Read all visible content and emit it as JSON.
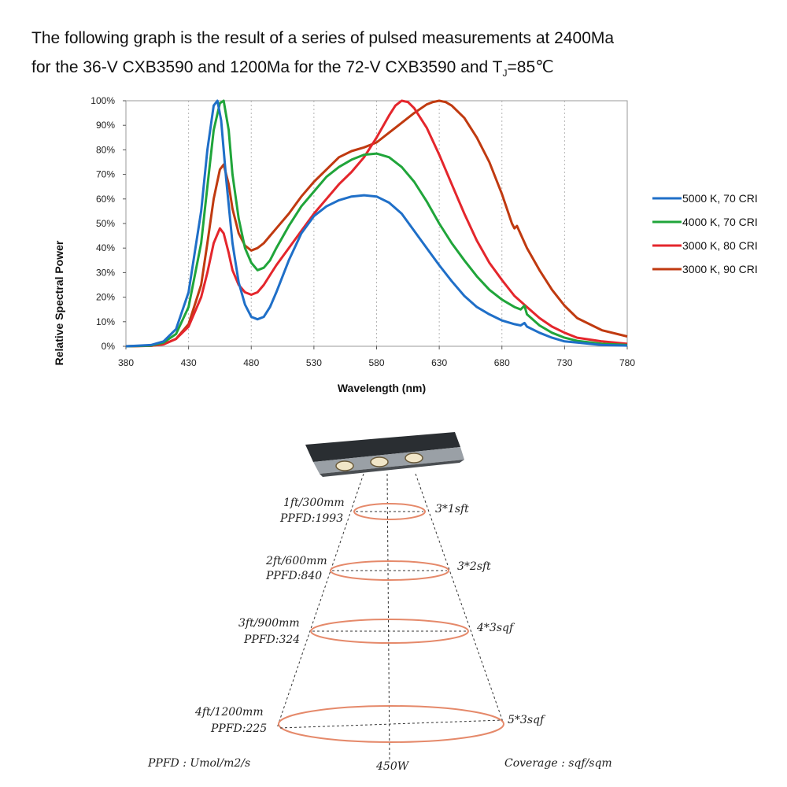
{
  "heading": {
    "line1": "The following graph is the result of a series of pulsed measurements at 2400Ma",
    "line2_prefix": "for the 36-V CXB3590 and 1200Ma for the 72-V CXB3590 and T",
    "line2_sub": "J",
    "line2_suffix": "=85℃"
  },
  "chart_data": {
    "type": "line",
    "xlabel": "Wavelength (nm)",
    "ylabel": "Relative Spectral Power",
    "xlim": [
      380,
      780
    ],
    "ylim": [
      0,
      100
    ],
    "x_ticks": [
      380,
      430,
      480,
      530,
      580,
      630,
      680,
      730,
      780
    ],
    "y_ticks": [
      "0%",
      "10%",
      "20%",
      "30%",
      "40%",
      "50%",
      "60%",
      "70%",
      "80%",
      "90%",
      "100%"
    ],
    "grid": "vertical dashed",
    "legend_position": "right",
    "series": [
      {
        "name": "5000 K, 70 CRI",
        "color": "#1f6fc8",
        "x": [
          380,
          400,
          410,
          420,
          430,
          440,
          445,
          450,
          453,
          456,
          460,
          465,
          470,
          475,
          480,
          485,
          490,
          495,
          500,
          510,
          520,
          530,
          540,
          550,
          560,
          570,
          580,
          590,
          600,
          610,
          620,
          630,
          640,
          650,
          660,
          670,
          680,
          690,
          695,
          698,
          700,
          710,
          720,
          730,
          740,
          760,
          780
        ],
        "y": [
          0,
          0.5,
          2,
          7,
          22,
          55,
          80,
          98,
          100,
          92,
          68,
          42,
          26,
          17,
          12,
          11,
          12,
          16,
          22,
          35,
          46,
          53,
          57,
          59.5,
          61,
          61.5,
          61,
          58.5,
          54,
          47,
          40,
          33,
          26.5,
          20.5,
          16,
          13,
          10.5,
          9,
          8.5,
          9.5,
          8,
          5.5,
          3.5,
          2,
          1.5,
          0.5,
          0.3
        ]
      },
      {
        "name": "4000 K, 70 CRI",
        "color": "#20a53a",
        "x": [
          380,
          400,
          410,
          420,
          430,
          440,
          445,
          450,
          455,
          458,
          462,
          465,
          470,
          475,
          480,
          485,
          490,
          495,
          500,
          510,
          520,
          530,
          540,
          550,
          560,
          570,
          580,
          590,
          600,
          610,
          620,
          630,
          640,
          650,
          660,
          670,
          680,
          690,
          695,
          698,
          700,
          710,
          720,
          730,
          740,
          760,
          780
        ],
        "y": [
          0,
          0.3,
          1.5,
          5,
          16,
          42,
          65,
          88,
          99,
          100,
          88,
          70,
          52,
          40,
          34,
          31,
          32,
          35,
          40,
          49,
          57,
          63,
          69,
          73,
          76,
          78,
          78.5,
          77,
          73,
          67,
          59,
          50,
          42,
          35,
          28.5,
          23,
          19,
          16,
          15,
          16.5,
          13,
          8.5,
          5.5,
          3.5,
          2.2,
          1,
          0.5
        ]
      },
      {
        "name": "3000 K, 80 CRI",
        "color": "#e4262c",
        "x": [
          380,
          400,
          410,
          420,
          430,
          440,
          445,
          450,
          455,
          458,
          462,
          465,
          470,
          475,
          480,
          485,
          490,
          495,
          500,
          510,
          520,
          530,
          540,
          550,
          560,
          570,
          580,
          590,
          595,
          600,
          605,
          610,
          620,
          630,
          640,
          650,
          660,
          670,
          680,
          690,
          700,
          710,
          720,
          730,
          740,
          760,
          780
        ],
        "y": [
          0,
          0.2,
          0.8,
          3,
          8,
          20,
          30,
          42,
          48,
          46,
          38,
          31,
          25,
          22,
          21,
          22,
          25,
          29,
          33,
          40,
          47,
          54,
          60,
          66,
          71,
          77,
          85,
          94,
          98,
          100,
          99.5,
          97,
          89,
          78,
          66,
          54,
          43,
          34,
          27,
          20.5,
          16,
          11.5,
          8,
          5.5,
          3.5,
          2,
          1
        ]
      },
      {
        "name": "3000 K, 90 CRI",
        "color": "#c03a10",
        "x": [
          380,
          400,
          410,
          420,
          430,
          440,
          445,
          450,
          455,
          458,
          462,
          465,
          470,
          475,
          480,
          485,
          490,
          495,
          500,
          510,
          520,
          530,
          540,
          550,
          560,
          570,
          580,
          590,
          600,
          610,
          620,
          625,
          630,
          635,
          640,
          650,
          660,
          670,
          680,
          688,
          690,
          692,
          700,
          710,
          720,
          730,
          740,
          760,
          780
        ],
        "y": [
          0,
          0.2,
          0.8,
          3,
          9,
          25,
          42,
          60,
          72,
          74,
          66,
          56,
          46,
          41,
          39,
          40,
          42,
          45,
          48,
          54,
          61,
          67,
          72,
          77,
          79.5,
          81,
          83,
          87,
          91,
          95,
          98.5,
          99.5,
          100,
          99.5,
          98,
          93,
          85,
          75,
          62,
          50,
          48,
          49,
          40,
          31,
          23,
          16.5,
          11.5,
          6.5,
          4
        ]
      }
    ]
  },
  "coverage_diagram": {
    "levels": [
      {
        "height": "1ft/300mm",
        "ppfd": "PPFD:1993",
        "coverage": "3*1sft"
      },
      {
        "height": "2ft/600mm",
        "ppfd": "PPFD:840",
        "coverage": "3*2sft"
      },
      {
        "height": "3ft/900mm",
        "ppfd": "PPFD:324",
        "coverage": "4*3sqf"
      },
      {
        "height": "4ft/1200mm",
        "ppfd": "PPFD:225",
        "coverage": "5*3sqf"
      }
    ],
    "ppfd_unit": "PPFD : Umol/m2/s",
    "wattage": "450W",
    "coverage_unit": "Coverage : sqf/sqm",
    "ring_color": "#e5896a"
  }
}
